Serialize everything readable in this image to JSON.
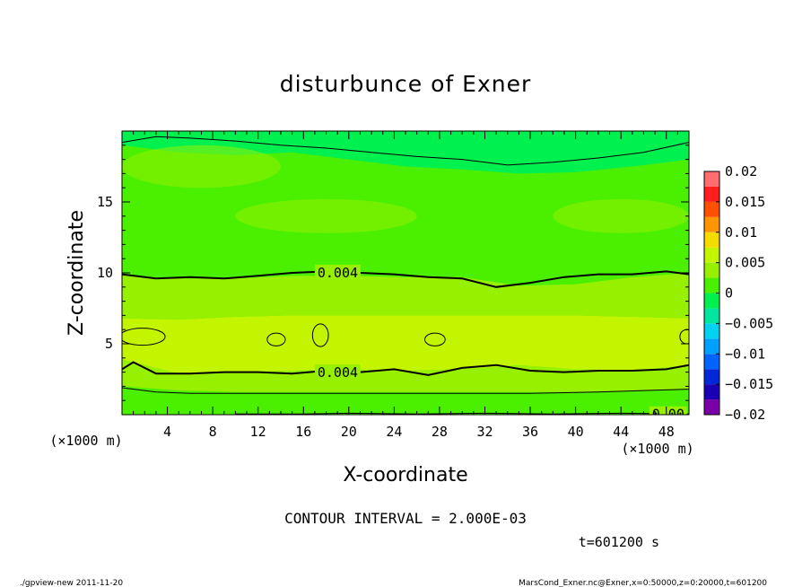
{
  "chart_data": {
    "type": "heatmap",
    "title": "disturbunce of Exner",
    "xlabel": "X-coordinate",
    "ylabel": "Z-coordinate",
    "xunit": "(×1000 m)",
    "yunit": "(×1000 m)",
    "xlim": [
      0,
      50
    ],
    "ylim": [
      0,
      20
    ],
    "x_ticks": [
      4,
      8,
      12,
      16,
      20,
      24,
      28,
      32,
      36,
      40,
      44,
      48
    ],
    "y_ticks": [
      5,
      10,
      15
    ],
    "colorbar": {
      "ticks": [
        "0.02",
        "0.015",
        "0.01",
        "0.005",
        "0",
        "−0.005",
        "−0.01",
        "−0.015",
        "−0.02"
      ],
      "levels": [
        {
          "lo": -0.02,
          "hi": -0.0175,
          "color": "#7a00a8"
        },
        {
          "lo": -0.0175,
          "hi": -0.015,
          "color": "#1a00b4"
        },
        {
          "lo": -0.015,
          "hi": -0.0125,
          "color": "#0028d8"
        },
        {
          "lo": -0.0125,
          "hi": -0.01,
          "color": "#0064ff"
        },
        {
          "lo": -0.01,
          "hi": -0.0075,
          "color": "#00a0ff"
        },
        {
          "lo": -0.0075,
          "hi": -0.005,
          "color": "#00d2f0"
        },
        {
          "lo": -0.005,
          "hi": -0.0025,
          "color": "#00e6a0"
        },
        {
          "lo": -0.0025,
          "hi": 0,
          "color": "#00f050"
        },
        {
          "lo": 0,
          "hi": 0.0025,
          "color": "#4bf000"
        },
        {
          "lo": 0.0025,
          "hi": 0.005,
          "color": "#96f000"
        },
        {
          "lo": 0.005,
          "hi": 0.0075,
          "color": "#c3f500"
        },
        {
          "lo": 0.0075,
          "hi": 0.01,
          "color": "#f5dc00"
        },
        {
          "lo": 0.01,
          "hi": 0.0125,
          "color": "#ff9600"
        },
        {
          "lo": 0.0125,
          "hi": 0.015,
          "color": "#ff5000"
        },
        {
          "lo": 0.015,
          "hi": 0.0175,
          "color": "#ff1e1e"
        },
        {
          "lo": 0.0175,
          "hi": 0.02,
          "color": "#ff6e6e"
        }
      ]
    },
    "filled_bands": [
      {
        "lower_z": [
          0.0,
          0.0,
          0.0,
          0.0,
          0.0,
          0.0,
          0.0,
          0.0,
          0.0,
          0.0,
          0.0
        ],
        "upper_z": [
          2.0,
          1.7,
          1.6,
          1.6,
          1.6,
          1.6,
          1.6,
          1.6,
          1.6,
          1.7,
          1.8
        ],
        "color": "#4bf000"
      },
      {
        "lower_z": [
          2.0,
          1.7,
          1.6,
          1.6,
          1.6,
          1.6,
          1.6,
          1.6,
          1.6,
          1.7,
          1.8
        ],
        "upper_z": [
          3.9,
          2.9,
          3.0,
          3.1,
          3.2,
          3.1,
          3.2,
          3.5,
          3.2,
          3.1,
          3.5
        ],
        "color": "#96f000"
      },
      {
        "lower_z": [
          3.9,
          2.9,
          3.0,
          3.1,
          3.2,
          3.1,
          3.2,
          3.5,
          3.2,
          3.1,
          3.5
        ],
        "upper_z": [
          6.8,
          6.7,
          6.9,
          7.0,
          7.0,
          7.0,
          7.0,
          7.0,
          7.0,
          6.9,
          6.8
        ],
        "color": "#c3f500"
      },
      {
        "lower_z": [
          6.8,
          6.7,
          6.9,
          7.0,
          7.0,
          7.0,
          7.0,
          7.0,
          7.0,
          6.9,
          6.8
        ],
        "upper_z": [
          9.8,
          9.6,
          9.6,
          9.8,
          9.8,
          9.7,
          9.7,
          9.1,
          9.2,
          9.7,
          10.0
        ],
        "color": "#96f000"
      },
      {
        "lower_z": [
          9.8,
          9.6,
          9.6,
          9.8,
          9.8,
          9.7,
          9.7,
          9.1,
          9.2,
          9.7,
          10.0
        ],
        "upper_z": [
          13.5,
          13.2,
          13.0,
          12.3,
          11.8,
          12.0,
          12.2,
          11.5,
          11.8,
          12.5,
          13.0
        ],
        "color": "#4bf000"
      },
      {
        "lower_z": [
          13.5,
          13.2,
          13.0,
          12.3,
          11.8,
          12.0,
          12.2,
          11.5,
          11.8,
          12.5,
          13.0
        ],
        "upper_z": [
          19.0,
          18.5,
          18.3,
          18.5,
          18.0,
          17.5,
          17.3,
          17.0,
          17.1,
          17.5,
          18.0
        ],
        "color": "#4bf000"
      },
      {
        "lower_z": [
          19.0,
          18.5,
          18.3,
          18.5,
          18.0,
          17.5,
          17.3,
          17.0,
          17.1,
          17.5,
          18.0
        ],
        "upper_z": [
          20.0,
          20.0,
          20.0,
          20.0,
          20.0,
          20.0,
          20.0,
          20.0,
          20.0,
          20.0,
          20.0
        ],
        "color": "#00f050"
      }
    ],
    "band_x": [
      0,
      5,
      10,
      15,
      20,
      25,
      30,
      35,
      40,
      45,
      50
    ],
    "lighter_patches": [
      {
        "cx": 7,
        "cz": 17.5,
        "rx": 7,
        "rz": 1.5,
        "color": "#96f000"
      },
      {
        "cx": 18,
        "cz": 14.0,
        "rx": 8,
        "rz": 1.2,
        "color": "#96f000"
      },
      {
        "cx": 44,
        "cz": 14.0,
        "rx": 6,
        "rz": 1.2,
        "color": "#96f000"
      }
    ],
    "contour_lines": [
      {
        "x": [
          0,
          3,
          6,
          9,
          12,
          15,
          18,
          21,
          24,
          27,
          30,
          33,
          36,
          39,
          42,
          45,
          48,
          50
        ],
        "z": [
          9.9,
          9.6,
          9.7,
          9.6,
          9.8,
          10.0,
          10.1,
          10.0,
          9.9,
          9.7,
          9.6,
          9.0,
          9.3,
          9.7,
          9.9,
          9.9,
          10.1,
          9.9
        ],
        "label": "0.004",
        "label_x": 17.0
      },
      {
        "x": [
          0,
          1,
          3,
          6,
          9,
          12,
          15,
          18,
          21,
          24,
          27,
          30,
          33,
          36,
          39,
          42,
          45,
          48,
          50
        ],
        "z": [
          3.2,
          3.7,
          2.9,
          2.9,
          3.0,
          3.0,
          2.9,
          3.1,
          3.0,
          3.2,
          2.8,
          3.3,
          3.5,
          3.1,
          3.0,
          3.1,
          3.1,
          3.2,
          3.5
        ],
        "label": "0.004",
        "label_x": 17.0
      },
      {
        "x": [
          0,
          3,
          6,
          12,
          18,
          24,
          30,
          36,
          42,
          46,
          50
        ],
        "z": [
          1.9,
          1.6,
          1.5,
          1.5,
          1.5,
          1.5,
          1.5,
          1.5,
          1.6,
          1.7,
          1.8
        ],
        "label": "",
        "label_x": 0
      },
      {
        "x": [
          10,
          16,
          20,
          26,
          32,
          38,
          44,
          50
        ],
        "z": [
          0.05,
          0.05,
          0.1,
          0.05,
          0.1,
          0.05,
          0.1,
          0.05
        ],
        "label": "0.00",
        "label_x": 46.5
      },
      {
        "x": [
          0,
          3,
          6,
          10,
          14,
          18,
          22,
          26,
          30,
          34,
          38,
          42,
          46,
          50
        ],
        "z": [
          19.2,
          19.6,
          19.5,
          19.3,
          19.0,
          18.8,
          18.5,
          18.2,
          18.0,
          17.6,
          17.8,
          18.1,
          18.5,
          19.2
        ],
        "label": "",
        "label_x": 0
      }
    ],
    "closed_contours": [
      {
        "cx": 1.8,
        "cz": 5.5,
        "rx": 2.0,
        "rz": 0.6
      },
      {
        "cx": 13.6,
        "cz": 5.3,
        "rx": 0.8,
        "rz": 0.45
      },
      {
        "cx": 17.5,
        "cz": 5.6,
        "rx": 0.7,
        "rz": 0.8
      },
      {
        "cx": 27.6,
        "cz": 5.3,
        "rx": 0.9,
        "rz": 0.45
      },
      {
        "cx": 49.8,
        "cz": 5.5,
        "rx": 0.6,
        "rz": 0.5
      }
    ]
  },
  "annotations": {
    "contour_interval": "CONTOUR INTERVAL = 2.000E-03",
    "time": "t=601200  s",
    "footer_left": "./gpview-new   2011-11-20",
    "footer_right": "MarsCond_Exner.nc@Exner,x=0:50000,z=0:20000,t=601200"
  }
}
